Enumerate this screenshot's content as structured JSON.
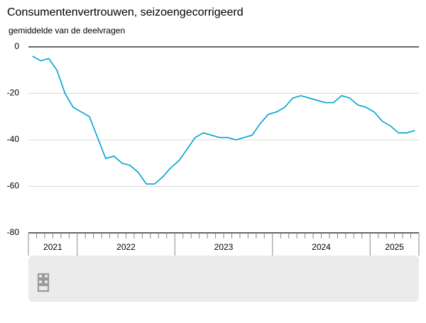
{
  "chart_data": {
    "type": "line",
    "title": "Consumentenvertrouwen, seizoengecorrigeerd",
    "subtitle": "gemiddelde van de deelvragen",
    "categories": [
      "2021",
      "2021",
      "2021",
      "2021",
      "2021",
      "2021",
      "2022",
      "2022",
      "2022",
      "2022",
      "2022",
      "2022",
      "2022",
      "2022",
      "2022",
      "2022",
      "2022",
      "2022",
      "2023",
      "2023",
      "2023",
      "2023",
      "2023",
      "2023",
      "2023",
      "2023",
      "2023",
      "2023",
      "2023",
      "2023",
      "2024",
      "2024",
      "2024",
      "2024",
      "2024",
      "2024",
      "2024",
      "2024",
      "2024",
      "2024",
      "2024",
      "2024",
      "2025",
      "2025",
      "2025",
      "2025",
      "2025",
      "2025"
    ],
    "series": [
      {
        "color": "#00a1cd",
        "values": [
          -4,
          -6,
          -5,
          -10,
          -20,
          -26,
          -28,
          -30,
          -39,
          -48,
          -47,
          -50,
          -51,
          -54,
          -59,
          -59,
          -56,
          -52,
          -49,
          -44,
          -39,
          -37,
          -38,
          -39,
          -39,
          -40,
          -39,
          -38,
          -33,
          -29,
          -28,
          -26,
          -22,
          -21,
          -22,
          -23,
          -24,
          -24,
          -21,
          -22,
          -25,
          -26,
          -28,
          -32,
          -34,
          -37,
          -37,
          -36
        ]
      }
    ],
    "ylim": [
      -80,
      0
    ],
    "yticks": [
      0,
      -20,
      -40,
      -60,
      -80
    ],
    "grid": true
  }
}
